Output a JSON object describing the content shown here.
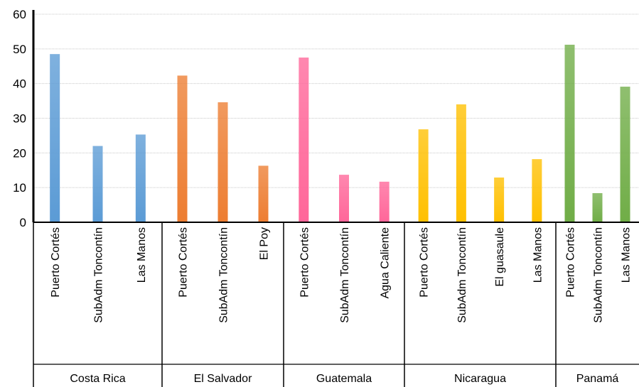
{
  "chart_data": {
    "type": "bar",
    "title": "",
    "xlabel": "",
    "ylabel": "",
    "ylim": [
      0,
      60
    ],
    "yticks": [
      0,
      10,
      20,
      30,
      40,
      50,
      60
    ],
    "grid": true,
    "legend": "none",
    "groups": [
      {
        "name": "Costa Rica",
        "color": "#5b9bd5",
        "categories": [
          "Puerto Cortés",
          "SubAdm Toncontín",
          "Las Manos"
        ],
        "values": [
          48.5,
          22,
          25.3
        ]
      },
      {
        "name": "El Salvador",
        "color": "#ed7d31",
        "categories": [
          "Puerto Cortés",
          "SubAdm Toncontín",
          "El Poy"
        ],
        "values": [
          42.3,
          34.6,
          16.3
        ]
      },
      {
        "name": "Guatemala",
        "color": "#ff6699",
        "categories": [
          "Puerto Cortés",
          "SubAdm Toncontín",
          "Agua Caliente"
        ],
        "values": [
          47.5,
          13.7,
          11.7
        ]
      },
      {
        "name": "Nicaragua",
        "color": "#ffc000",
        "categories": [
          "Puerto Cortés",
          "SubAdm Toncontín",
          "El guasaule",
          "Las Manos"
        ],
        "values": [
          26.8,
          34,
          12.9,
          18.2
        ]
      },
      {
        "name": "Panamá",
        "color": "#70ad47",
        "categories": [
          "Puerto Cortés",
          "SubAdm Toncontín",
          "Las Manos"
        ],
        "values": [
          51.2,
          8.4,
          39.1
        ]
      }
    ]
  }
}
